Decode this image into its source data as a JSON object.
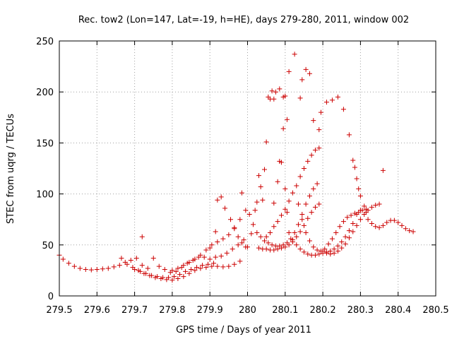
{
  "chart_data": {
    "type": "scatter",
    "title": "Rec. tow2 (Lon=147, Lat=-19, h=HE), days 279-280, 2011, window 002",
    "xlabel": "GPS time / Days of year 2011",
    "ylabel": "STEC from uqrg / TECUs",
    "xlim": [
      279.5,
      280.5
    ],
    "ylim": [
      0,
      250
    ],
    "xticks": [
      279.5,
      279.6,
      279.7,
      279.8,
      279.9,
      280.0,
      280.1,
      280.2,
      280.3,
      280.4,
      280.5
    ],
    "xtick_labels": [
      "279.5",
      "279.6",
      "279.7",
      "279.8",
      "279.9",
      "280",
      "280.1",
      "280.2",
      "280.3",
      "280.4",
      "280.5"
    ],
    "yticks": [
      0,
      50,
      100,
      150,
      200,
      250
    ],
    "ytick_labels": [
      "0",
      "50",
      "100",
      "150",
      "200",
      "250"
    ],
    "grid": true,
    "marker": "+",
    "color": "#cc0000",
    "series": [
      {
        "name": "STEC",
        "points": [
          [
            279.5,
            40
          ],
          [
            279.51,
            36
          ],
          [
            279.525,
            32
          ],
          [
            279.54,
            29
          ],
          [
            279.555,
            27
          ],
          [
            279.57,
            26
          ],
          [
            279.585,
            25.5
          ],
          [
            279.6,
            26
          ],
          [
            279.615,
            26.5
          ],
          [
            279.63,
            27
          ],
          [
            279.645,
            28.5
          ],
          [
            279.66,
            30
          ],
          [
            279.675,
            33
          ],
          [
            279.69,
            35
          ],
          [
            279.705,
            37
          ],
          [
            279.72,
            58
          ],
          [
            279.665,
            37
          ],
          [
            279.68,
            31
          ],
          [
            279.695,
            28
          ],
          [
            279.71,
            25
          ],
          [
            279.725,
            22
          ],
          [
            279.74,
            20
          ],
          [
            279.755,
            18
          ],
          [
            279.77,
            17
          ],
          [
            279.785,
            16
          ],
          [
            279.8,
            15.5
          ],
          [
            279.815,
            17
          ],
          [
            279.83,
            19
          ],
          [
            279.845,
            22
          ],
          [
            279.86,
            25
          ],
          [
            279.875,
            27
          ],
          [
            279.89,
            28
          ],
          [
            279.905,
            29
          ],
          [
            279.92,
            29
          ],
          [
            279.935,
            28.5
          ],
          [
            279.95,
            29
          ],
          [
            279.965,
            31
          ],
          [
            279.98,
            34
          ],
          [
            279.7,
            26
          ],
          [
            279.715,
            24
          ],
          [
            279.73,
            22
          ],
          [
            279.745,
            20
          ],
          [
            279.76,
            19
          ],
          [
            279.775,
            18
          ],
          [
            279.79,
            18
          ],
          [
            279.805,
            19
          ],
          [
            279.82,
            21
          ],
          [
            279.835,
            24
          ],
          [
            279.85,
            26
          ],
          [
            279.865,
            28
          ],
          [
            279.88,
            30
          ],
          [
            279.895,
            31
          ],
          [
            279.91,
            32
          ],
          [
            279.72,
            30
          ],
          [
            279.735,
            27
          ],
          [
            279.75,
            37
          ],
          [
            279.765,
            29
          ],
          [
            279.78,
            26
          ],
          [
            279.795,
            23
          ],
          [
            279.81,
            24
          ],
          [
            279.825,
            28
          ],
          [
            279.84,
            32
          ],
          [
            279.855,
            35
          ],
          [
            279.87,
            38
          ],
          [
            279.885,
            38
          ],
          [
            279.9,
            36
          ],
          [
            279.915,
            38
          ],
          [
            279.93,
            39
          ],
          [
            279.945,
            42
          ],
          [
            279.96,
            46
          ],
          [
            279.975,
            50
          ],
          [
            279.99,
            55
          ],
          [
            279.8,
            25
          ],
          [
            279.815,
            27
          ],
          [
            279.83,
            30
          ],
          [
            279.845,
            33
          ],
          [
            279.86,
            36
          ],
          [
            279.875,
            40
          ],
          [
            279.89,
            45
          ],
          [
            279.905,
            50
          ],
          [
            279.92,
            53
          ],
          [
            279.935,
            56
          ],
          [
            279.95,
            60
          ],
          [
            279.965,
            67
          ],
          [
            279.98,
            75
          ],
          [
            279.995,
            84
          ],
          [
            279.9,
            47
          ],
          [
            279.915,
            63
          ],
          [
            279.93,
            97
          ],
          [
            279.92,
            94
          ],
          [
            279.94,
            86
          ],
          [
            279.955,
            75
          ],
          [
            279.965,
            66
          ],
          [
            279.975,
            58
          ],
          [
            279.985,
            52
          ],
          [
            279.995,
            48
          ],
          [
            279.985,
            101
          ],
          [
            280.0,
            48
          ],
          [
            280.01,
            61
          ],
          [
            280.02,
            84
          ],
          [
            280.025,
            92
          ],
          [
            280.03,
            118
          ],
          [
            280.035,
            107
          ],
          [
            280.04,
            94
          ],
          [
            280.045,
            124
          ],
          [
            280.05,
            151
          ],
          [
            280.055,
            195
          ],
          [
            280.06,
            193
          ],
          [
            280.065,
            201
          ],
          [
            280.07,
            193
          ],
          [
            280.075,
            200
          ],
          [
            280.085,
            203
          ],
          [
            280.095,
            195
          ],
          [
            280.1,
            196
          ],
          [
            280.105,
            173
          ],
          [
            280.11,
            220
          ],
          [
            280.125,
            237
          ],
          [
            280.14,
            194
          ],
          [
            280.145,
            212
          ],
          [
            280.155,
            222
          ],
          [
            280.165,
            218
          ],
          [
            280.175,
            172
          ],
          [
            280.19,
            163
          ],
          [
            280.195,
            180
          ],
          [
            280.21,
            190
          ],
          [
            280.225,
            192
          ],
          [
            280.24,
            195
          ],
          [
            280.255,
            183
          ],
          [
            280.27,
            158
          ],
          [
            280.28,
            133
          ],
          [
            280.285,
            126
          ],
          [
            280.29,
            115
          ],
          [
            280.295,
            105
          ],
          [
            280.3,
            98
          ],
          [
            280.31,
            88
          ],
          [
            280.315,
            82
          ],
          [
            280.32,
            75
          ],
          [
            280.33,
            71
          ],
          [
            280.34,
            68
          ],
          [
            280.35,
            67
          ],
          [
            280.36,
            69
          ],
          [
            280.37,
            72
          ],
          [
            280.38,
            74
          ],
          [
            280.39,
            74
          ],
          [
            280.4,
            72
          ],
          [
            280.41,
            69
          ],
          [
            280.42,
            66
          ],
          [
            280.43,
            64
          ],
          [
            280.44,
            63
          ],
          [
            280.005,
            80
          ],
          [
            280.015,
            70
          ],
          [
            280.025,
            62
          ],
          [
            280.035,
            58
          ],
          [
            280.045,
            54
          ],
          [
            280.055,
            52
          ],
          [
            280.065,
            50
          ],
          [
            280.075,
            49
          ],
          [
            280.085,
            49
          ],
          [
            280.095,
            50
          ],
          [
            280.105,
            52
          ],
          [
            280.115,
            56
          ],
          [
            280.125,
            62
          ],
          [
            280.135,
            70
          ],
          [
            280.145,
            80
          ],
          [
            280.155,
            90
          ],
          [
            280.165,
            98
          ],
          [
            280.175,
            105
          ],
          [
            280.185,
            110
          ],
          [
            280.03,
            47
          ],
          [
            280.04,
            46
          ],
          [
            280.05,
            46
          ],
          [
            280.06,
            45
          ],
          [
            280.07,
            45
          ],
          [
            280.08,
            46
          ],
          [
            280.09,
            47
          ],
          [
            280.1,
            48
          ],
          [
            280.11,
            50
          ],
          [
            280.12,
            53
          ],
          [
            280.13,
            58
          ],
          [
            280.14,
            63
          ],
          [
            280.15,
            69
          ],
          [
            280.16,
            76
          ],
          [
            280.17,
            82
          ],
          [
            280.18,
            87
          ],
          [
            280.19,
            90
          ],
          [
            280.05,
            58
          ],
          [
            280.06,
            62
          ],
          [
            280.07,
            68
          ],
          [
            280.08,
            73
          ],
          [
            280.09,
            79
          ],
          [
            280.1,
            85
          ],
          [
            280.11,
            93
          ],
          [
            280.12,
            101
          ],
          [
            280.13,
            108
          ],
          [
            280.14,
            117
          ],
          [
            280.15,
            125
          ],
          [
            280.16,
            132
          ],
          [
            280.17,
            138
          ],
          [
            280.18,
            143
          ],
          [
            280.19,
            145
          ],
          [
            280.07,
            91
          ],
          [
            280.08,
            112
          ],
          [
            280.085,
            132
          ],
          [
            280.09,
            131
          ],
          [
            280.095,
            164
          ],
          [
            280.1,
            105
          ],
          [
            280.105,
            82
          ],
          [
            280.11,
            62
          ],
          [
            280.12,
            55
          ],
          [
            280.13,
            50
          ],
          [
            280.14,
            46
          ],
          [
            280.15,
            43
          ],
          [
            280.16,
            41
          ],
          [
            280.17,
            40
          ],
          [
            280.18,
            40
          ],
          [
            280.19,
            41
          ],
          [
            280.2,
            42
          ],
          [
            280.21,
            43
          ],
          [
            280.22,
            44
          ],
          [
            280.23,
            46
          ],
          [
            280.24,
            49
          ],
          [
            280.25,
            53
          ],
          [
            280.26,
            58
          ],
          [
            280.27,
            64
          ],
          [
            280.28,
            71
          ],
          [
            280.29,
            80
          ],
          [
            280.3,
            84
          ],
          [
            280.135,
            90
          ],
          [
            280.145,
            75
          ],
          [
            280.155,
            62
          ],
          [
            280.165,
            54
          ],
          [
            280.175,
            48
          ],
          [
            280.185,
            45
          ],
          [
            280.195,
            44
          ],
          [
            280.205,
            46
          ],
          [
            280.215,
            51
          ],
          [
            280.225,
            56
          ],
          [
            280.235,
            62
          ],
          [
            280.245,
            68
          ],
          [
            280.255,
            73
          ],
          [
            280.265,
            77
          ],
          [
            280.275,
            79
          ],
          [
            280.285,
            81
          ],
          [
            280.295,
            82
          ],
          [
            280.305,
            84
          ],
          [
            280.315,
            85
          ],
          [
            280.2,
            44
          ],
          [
            280.21,
            42
          ],
          [
            280.22,
            41
          ],
          [
            280.23,
            42
          ],
          [
            280.24,
            44
          ],
          [
            280.25,
            47
          ],
          [
            280.26,
            51
          ],
          [
            280.27,
            57
          ],
          [
            280.28,
            63
          ],
          [
            280.29,
            69
          ],
          [
            280.3,
            75
          ],
          [
            280.31,
            80
          ],
          [
            280.32,
            84
          ],
          [
            280.33,
            87
          ],
          [
            280.34,
            89
          ],
          [
            280.35,
            90
          ],
          [
            280.36,
            123
          ]
        ]
      }
    ]
  }
}
